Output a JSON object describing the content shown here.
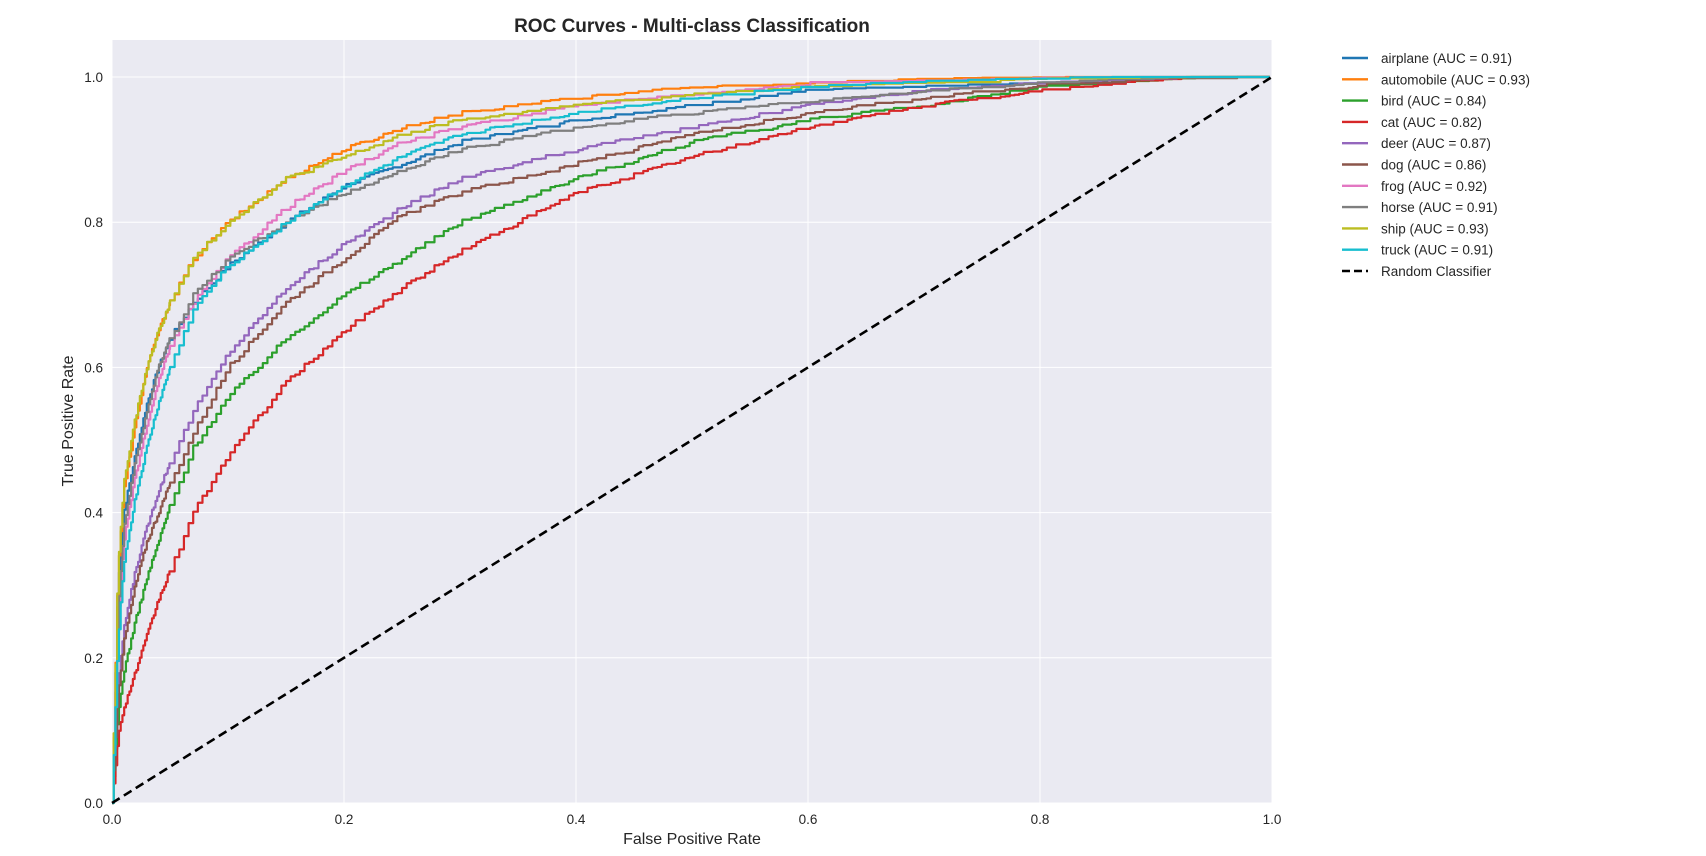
{
  "chart_data": {
    "type": "line",
    "title": "ROC Curves - Multi-class Classification",
    "xlabel": "False Positive Rate",
    "ylabel": "True Positive Rate",
    "xlim": [
      0.0,
      1.0
    ],
    "ylim": [
      0.0,
      1.0
    ],
    "xticks": [
      "0.0",
      "0.2",
      "0.4",
      "0.6",
      "0.8",
      "1.0"
    ],
    "yticks": [
      "0.0",
      "0.2",
      "0.4",
      "0.6",
      "0.8",
      "1.0"
    ],
    "grid": true,
    "background": "#eaeaf2",
    "legend_position": "outside-right",
    "series": [
      {
        "name": "airplane (AUC = 0.91)",
        "color": "#1f77b4",
        "points": [
          [
            0,
            0
          ],
          [
            0.005,
            0.3
          ],
          [
            0.01,
            0.4
          ],
          [
            0.02,
            0.48
          ],
          [
            0.03,
            0.55
          ],
          [
            0.04,
            0.6
          ],
          [
            0.05,
            0.64
          ],
          [
            0.07,
            0.69
          ],
          [
            0.1,
            0.74
          ],
          [
            0.15,
            0.8
          ],
          [
            0.2,
            0.85
          ],
          [
            0.25,
            0.88
          ],
          [
            0.3,
            0.91
          ],
          [
            0.4,
            0.94
          ],
          [
            0.5,
            0.96
          ],
          [
            0.6,
            0.98
          ],
          [
            0.7,
            0.985
          ],
          [
            0.8,
            0.99
          ],
          [
            0.9,
            0.997
          ],
          [
            1.0,
            1.0
          ]
        ]
      },
      {
        "name": "automobile (AUC = 0.93)",
        "color": "#ff7f0e",
        "points": [
          [
            0,
            0
          ],
          [
            0.005,
            0.32
          ],
          [
            0.01,
            0.43
          ],
          [
            0.02,
            0.52
          ],
          [
            0.03,
            0.6
          ],
          [
            0.04,
            0.65
          ],
          [
            0.05,
            0.69
          ],
          [
            0.07,
            0.75
          ],
          [
            0.1,
            0.8
          ],
          [
            0.15,
            0.86
          ],
          [
            0.2,
            0.9
          ],
          [
            0.25,
            0.93
          ],
          [
            0.3,
            0.95
          ],
          [
            0.4,
            0.97
          ],
          [
            0.5,
            0.985
          ],
          [
            0.6,
            0.99
          ],
          [
            0.7,
            0.995
          ],
          [
            0.8,
            0.997
          ],
          [
            0.9,
            0.999
          ],
          [
            1.0,
            1.0
          ]
        ]
      },
      {
        "name": "bird (AUC = 0.84)",
        "color": "#2ca02c",
        "points": [
          [
            0,
            0
          ],
          [
            0.005,
            0.12
          ],
          [
            0.01,
            0.18
          ],
          [
            0.02,
            0.25
          ],
          [
            0.03,
            0.31
          ],
          [
            0.04,
            0.36
          ],
          [
            0.05,
            0.41
          ],
          [
            0.07,
            0.49
          ],
          [
            0.1,
            0.56
          ],
          [
            0.15,
            0.64
          ],
          [
            0.2,
            0.7
          ],
          [
            0.25,
            0.75
          ],
          [
            0.3,
            0.8
          ],
          [
            0.4,
            0.86
          ],
          [
            0.5,
            0.91
          ],
          [
            0.6,
            0.94
          ],
          [
            0.7,
            0.96
          ],
          [
            0.8,
            0.985
          ],
          [
            0.9,
            0.995
          ],
          [
            1.0,
            1.0
          ]
        ]
      },
      {
        "name": "cat (AUC = 0.82)",
        "color": "#d62728",
        "points": [
          [
            0,
            0
          ],
          [
            0.005,
            0.09
          ],
          [
            0.01,
            0.13
          ],
          [
            0.02,
            0.18
          ],
          [
            0.03,
            0.23
          ],
          [
            0.04,
            0.28
          ],
          [
            0.05,
            0.32
          ],
          [
            0.07,
            0.4
          ],
          [
            0.1,
            0.48
          ],
          [
            0.15,
            0.58
          ],
          [
            0.2,
            0.65
          ],
          [
            0.25,
            0.71
          ],
          [
            0.3,
            0.76
          ],
          [
            0.4,
            0.84
          ],
          [
            0.5,
            0.89
          ],
          [
            0.6,
            0.93
          ],
          [
            0.7,
            0.96
          ],
          [
            0.8,
            0.98
          ],
          [
            0.9,
            0.995
          ],
          [
            1.0,
            1.0
          ]
        ]
      },
      {
        "name": "deer (AUC = 0.87)",
        "color": "#9467bd",
        "points": [
          [
            0,
            0
          ],
          [
            0.005,
            0.16
          ],
          [
            0.01,
            0.24
          ],
          [
            0.02,
            0.32
          ],
          [
            0.03,
            0.38
          ],
          [
            0.04,
            0.43
          ],
          [
            0.05,
            0.47
          ],
          [
            0.07,
            0.54
          ],
          [
            0.1,
            0.62
          ],
          [
            0.15,
            0.71
          ],
          [
            0.2,
            0.77
          ],
          [
            0.25,
            0.82
          ],
          [
            0.3,
            0.86
          ],
          [
            0.4,
            0.9
          ],
          [
            0.5,
            0.93
          ],
          [
            0.6,
            0.96
          ],
          [
            0.7,
            0.98
          ],
          [
            0.8,
            0.99
          ],
          [
            0.9,
            0.996
          ],
          [
            1.0,
            1.0
          ]
        ]
      },
      {
        "name": "dog (AUC = 0.86)",
        "color": "#8c564b",
        "points": [
          [
            0,
            0
          ],
          [
            0.005,
            0.15
          ],
          [
            0.01,
            0.22
          ],
          [
            0.02,
            0.3
          ],
          [
            0.03,
            0.36
          ],
          [
            0.04,
            0.4
          ],
          [
            0.05,
            0.44
          ],
          [
            0.07,
            0.51
          ],
          [
            0.1,
            0.6
          ],
          [
            0.15,
            0.69
          ],
          [
            0.2,
            0.75
          ],
          [
            0.25,
            0.81
          ],
          [
            0.3,
            0.84
          ],
          [
            0.4,
            0.88
          ],
          [
            0.5,
            0.92
          ],
          [
            0.6,
            0.95
          ],
          [
            0.7,
            0.97
          ],
          [
            0.8,
            0.988
          ],
          [
            0.9,
            0.996
          ],
          [
            1.0,
            1.0
          ]
        ]
      },
      {
        "name": "frog (AUC = 0.92)",
        "color": "#e377c2",
        "points": [
          [
            0,
            0
          ],
          [
            0.005,
            0.25
          ],
          [
            0.01,
            0.36
          ],
          [
            0.02,
            0.45
          ],
          [
            0.03,
            0.52
          ],
          [
            0.04,
            0.58
          ],
          [
            0.05,
            0.63
          ],
          [
            0.07,
            0.69
          ],
          [
            0.1,
            0.75
          ],
          [
            0.15,
            0.82
          ],
          [
            0.2,
            0.87
          ],
          [
            0.25,
            0.91
          ],
          [
            0.3,
            0.93
          ],
          [
            0.4,
            0.96
          ],
          [
            0.5,
            0.975
          ],
          [
            0.6,
            0.99
          ],
          [
            0.7,
            0.993
          ],
          [
            0.8,
            0.996
          ],
          [
            0.9,
            0.999
          ],
          [
            1.0,
            1.0
          ]
        ]
      },
      {
        "name": "horse (AUC = 0.91)",
        "color": "#7f7f7f",
        "points": [
          [
            0,
            0
          ],
          [
            0.005,
            0.26
          ],
          [
            0.01,
            0.38
          ],
          [
            0.02,
            0.47
          ],
          [
            0.03,
            0.54
          ],
          [
            0.04,
            0.6
          ],
          [
            0.05,
            0.64
          ],
          [
            0.07,
            0.7
          ],
          [
            0.1,
            0.75
          ],
          [
            0.15,
            0.8
          ],
          [
            0.2,
            0.84
          ],
          [
            0.25,
            0.87
          ],
          [
            0.3,
            0.9
          ],
          [
            0.4,
            0.93
          ],
          [
            0.5,
            0.95
          ],
          [
            0.6,
            0.965
          ],
          [
            0.7,
            0.98
          ],
          [
            0.8,
            0.99
          ],
          [
            0.9,
            0.997
          ],
          [
            1.0,
            1.0
          ]
        ]
      },
      {
        "name": "ship (AUC = 0.93)",
        "color": "#bcbd22",
        "points": [
          [
            0,
            0
          ],
          [
            0.005,
            0.32
          ],
          [
            0.01,
            0.44
          ],
          [
            0.02,
            0.53
          ],
          [
            0.03,
            0.6
          ],
          [
            0.04,
            0.65
          ],
          [
            0.05,
            0.69
          ],
          [
            0.07,
            0.75
          ],
          [
            0.1,
            0.8
          ],
          [
            0.15,
            0.86
          ],
          [
            0.2,
            0.89
          ],
          [
            0.25,
            0.92
          ],
          [
            0.3,
            0.94
          ],
          [
            0.4,
            0.96
          ],
          [
            0.5,
            0.975
          ],
          [
            0.6,
            0.985
          ],
          [
            0.7,
            0.99
          ],
          [
            0.8,
            0.995
          ],
          [
            0.9,
            0.998
          ],
          [
            1.0,
            1.0
          ]
        ]
      },
      {
        "name": "truck (AUC = 0.91)",
        "color": "#17becf",
        "points": [
          [
            0,
            0
          ],
          [
            0.005,
            0.22
          ],
          [
            0.01,
            0.33
          ],
          [
            0.02,
            0.42
          ],
          [
            0.03,
            0.49
          ],
          [
            0.04,
            0.55
          ],
          [
            0.05,
            0.6
          ],
          [
            0.07,
            0.68
          ],
          [
            0.1,
            0.74
          ],
          [
            0.15,
            0.8
          ],
          [
            0.2,
            0.85
          ],
          [
            0.25,
            0.89
          ],
          [
            0.3,
            0.92
          ],
          [
            0.4,
            0.95
          ],
          [
            0.5,
            0.97
          ],
          [
            0.6,
            0.985
          ],
          [
            0.7,
            0.992
          ],
          [
            0.8,
            0.996
          ],
          [
            0.9,
            0.999
          ],
          [
            1.0,
            1.0
          ]
        ]
      },
      {
        "name": "Random Classifier",
        "color": "#000000",
        "dashed": true,
        "points": [
          [
            0,
            0
          ],
          [
            1,
            1
          ]
        ]
      }
    ]
  }
}
